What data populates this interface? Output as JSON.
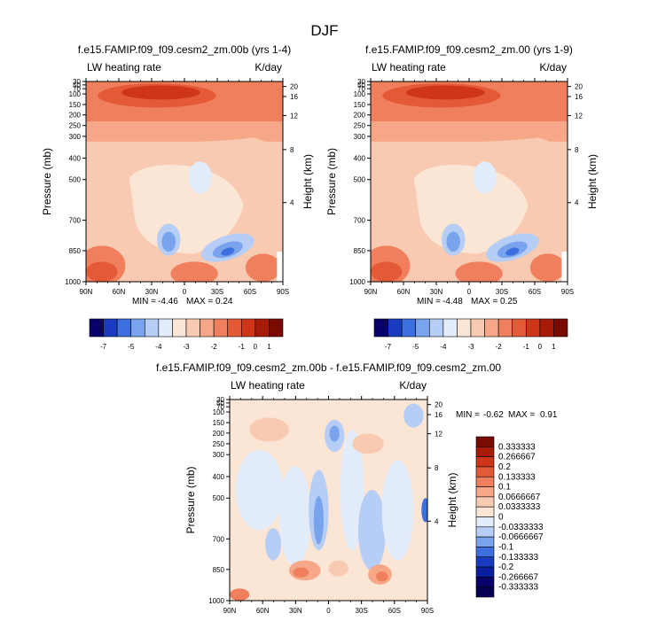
{
  "figure_title": "DJF",
  "chart_data": [
    {
      "type": "heatmap",
      "title": "f.e15.FAMIP.f09_f09.cesm2_zm.00b (yrs 1-4)",
      "left_label": "LW heating rate",
      "right_label": "K/day",
      "ylabel": "Pressure (mb)",
      "y2label": "Height (km)",
      "x_ticks": [
        "90N",
        "60N",
        "30N",
        "0",
        "30S",
        "60S",
        "90S"
      ],
      "y_ticks": [
        "30",
        "50",
        "70",
        "100",
        "150",
        "200",
        "250",
        "300",
        "400",
        "500",
        "700",
        "850",
        "1000"
      ],
      "y2_ticks": [
        "20",
        "16",
        "12",
        "8",
        "4"
      ],
      "stats": {
        "min_label": "MIN =",
        "min": "-4.46",
        "max_label": "MAX =",
        "max": "0.24"
      },
      "colorbar_ticks": [
        "-7",
        "-5",
        "-4",
        "-3",
        "-2",
        "-1",
        "0",
        "1"
      ]
    },
    {
      "type": "heatmap",
      "title": "f.e15.FAMIP.f09_f09.cesm2_zm.00 (yrs 1-9)",
      "left_label": "LW heating rate",
      "right_label": "K/day",
      "ylabel": "Pressure (mb)",
      "y2label": "Height (km)",
      "x_ticks": [
        "90N",
        "60N",
        "30N",
        "0",
        "30S",
        "60S",
        "90S"
      ],
      "y_ticks": [
        "30",
        "50",
        "70",
        "100",
        "150",
        "200",
        "250",
        "300",
        "400",
        "500",
        "700",
        "850",
        "1000"
      ],
      "y2_ticks": [
        "20",
        "16",
        "12",
        "8",
        "4"
      ],
      "stats": {
        "min_label": "MIN =",
        "min": "-4.48",
        "max_label": "MAX =",
        "max": "0.25"
      },
      "colorbar_ticks": [
        "-7",
        "-5",
        "-4",
        "-3",
        "-2",
        "-1",
        "0",
        "1"
      ]
    },
    {
      "type": "heatmap",
      "title": "f.e15.FAMIP.f09_f09.cesm2_zm.00b - f.e15.FAMIP.f09_f09.cesm2_zm.00",
      "left_label": "LW heating rate",
      "right_label": "K/day",
      "ylabel": "Pressure (mb)",
      "y2label": "Height (km)",
      "x_ticks": [
        "90N",
        "60N",
        "30N",
        "0",
        "30S",
        "60S",
        "90S"
      ],
      "y_ticks": [
        "30",
        "50",
        "70",
        "100",
        "150",
        "200",
        "250",
        "300",
        "400",
        "500",
        "700",
        "850",
        "1000"
      ],
      "y2_ticks": [
        "20",
        "16",
        "12",
        "8",
        "4"
      ],
      "stats": {
        "min_label": "MIN =",
        "min": "-0.62",
        "max_label": "MAX =",
        "max": "0.91"
      },
      "colorbar_ticks": [
        "0.333333",
        "0.266667",
        "0.2",
        "0.133333",
        "0.1",
        "0.0666667",
        "0.0333333",
        "0",
        "-0.0333333",
        "-0.0666667",
        "-0.1",
        "-0.133333",
        "-0.2",
        "-0.266667",
        "-0.333333"
      ]
    }
  ],
  "palette": [
    "#08006b",
    "#1a3bbf",
    "#3d6fe0",
    "#7aa3ee",
    "#b6cdf6",
    "#e3ecfb",
    "#fbe6d6",
    "#f9cab2",
    "#f5a787",
    "#ef7f5d",
    "#e55a36",
    "#cf3518",
    "#a81b08",
    "#7a0a00"
  ]
}
